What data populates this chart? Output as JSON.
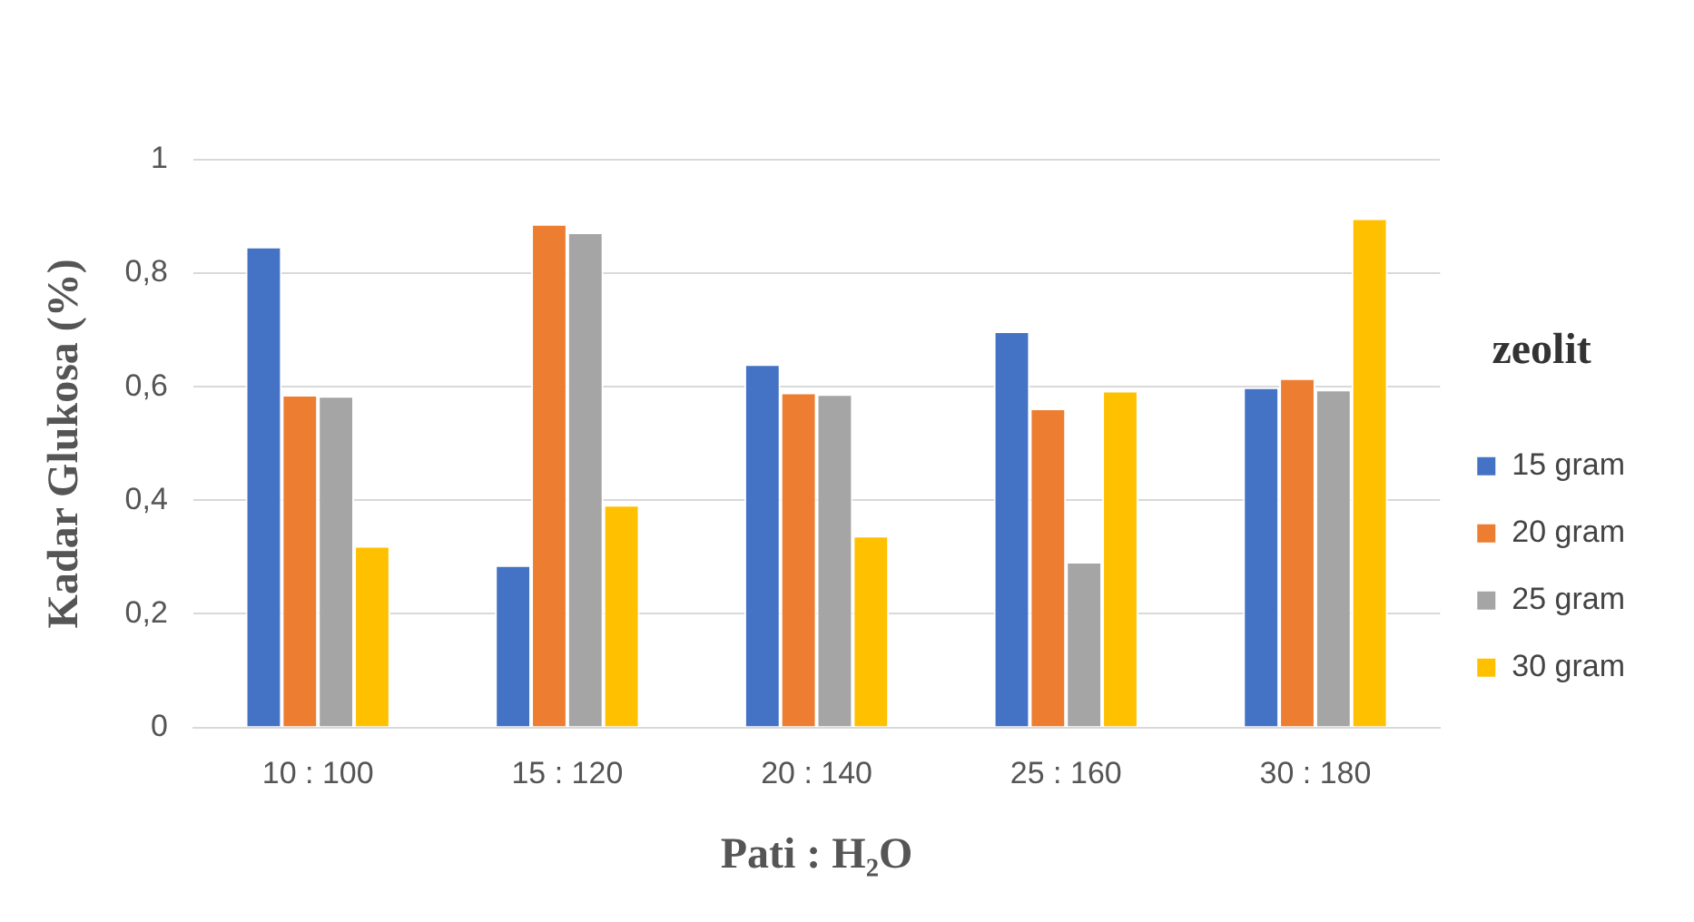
{
  "chart_data": {
    "type": "bar",
    "xlabel": "Pati : H₂O",
    "ylabel": "Kadar Glukosa (%)",
    "legend_title": "zeolit",
    "categories": [
      "10 : 100",
      "15 : 120",
      "20 : 140",
      "25 : 160",
      "30 : 180"
    ],
    "series": [
      {
        "name": "15 gram",
        "color": "#4472c4",
        "values": [
          0.847,
          0.286,
          0.64,
          0.698,
          0.599
        ]
      },
      {
        "name": "20 gram",
        "color": "#ed7d31",
        "values": [
          0.586,
          0.887,
          0.59,
          0.562,
          0.615
        ]
      },
      {
        "name": "25 gram",
        "color": "#a5a5a5",
        "values": [
          0.584,
          0.872,
          0.587,
          0.292,
          0.595
        ]
      },
      {
        "name": "30 gram",
        "color": "#ffc000",
        "values": [
          0.32,
          0.392,
          0.338,
          0.593,
          0.897
        ]
      }
    ],
    "ylim": [
      0,
      1
    ],
    "yticks": [
      0,
      {
        "value": 0.2,
        "label": "0,2"
      },
      {
        "value": 0.4,
        "label": "0,4"
      },
      {
        "value": 0.6,
        "label": "0,6"
      },
      {
        "value": 0.8,
        "label": "0,8"
      },
      1
    ],
    "grid": "y",
    "legend": "right"
  }
}
